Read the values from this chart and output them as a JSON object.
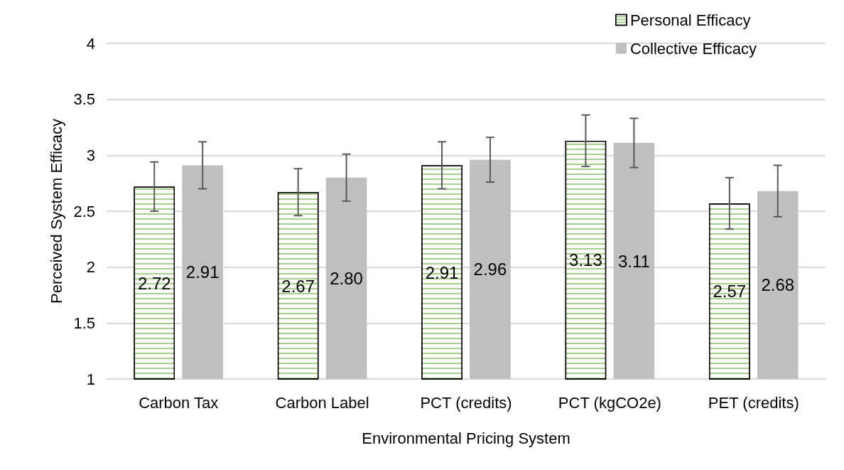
{
  "chart_data": {
    "type": "bar",
    "xlabel": "Environmental Pricing System",
    "ylabel": "Perceived System Efficacy",
    "categories": [
      "Carbon Tax",
      "Carbon Label",
      "PCT (credits)",
      "PCT (kgCO2e)",
      "PET (credits)"
    ],
    "series": [
      {
        "name": "Personal Efficacy",
        "color": "#a9d18e",
        "values": [
          2.72,
          2.67,
          2.91,
          3.13,
          2.57
        ],
        "value_labels": [
          "2.72",
          "2.67",
          "2.91",
          "3.13",
          "2.57"
        ],
        "errors": [
          0.22,
          0.21,
          0.21,
          0.23,
          0.23
        ]
      },
      {
        "name": "Collective Efficacy",
        "color": "#bfbfbf",
        "values": [
          2.91,
          2.8,
          2.96,
          3.11,
          2.68
        ],
        "value_labels": [
          "2.91",
          "2.80",
          "2.96",
          "3.11",
          "2.68"
        ],
        "errors": [
          0.21,
          0.21,
          0.2,
          0.22,
          0.23
        ]
      }
    ],
    "ylim": [
      1,
      4
    ],
    "yticks": [
      1,
      1.5,
      2,
      2.5,
      3,
      3.5,
      4
    ],
    "grid": "y",
    "legend": "top right"
  }
}
